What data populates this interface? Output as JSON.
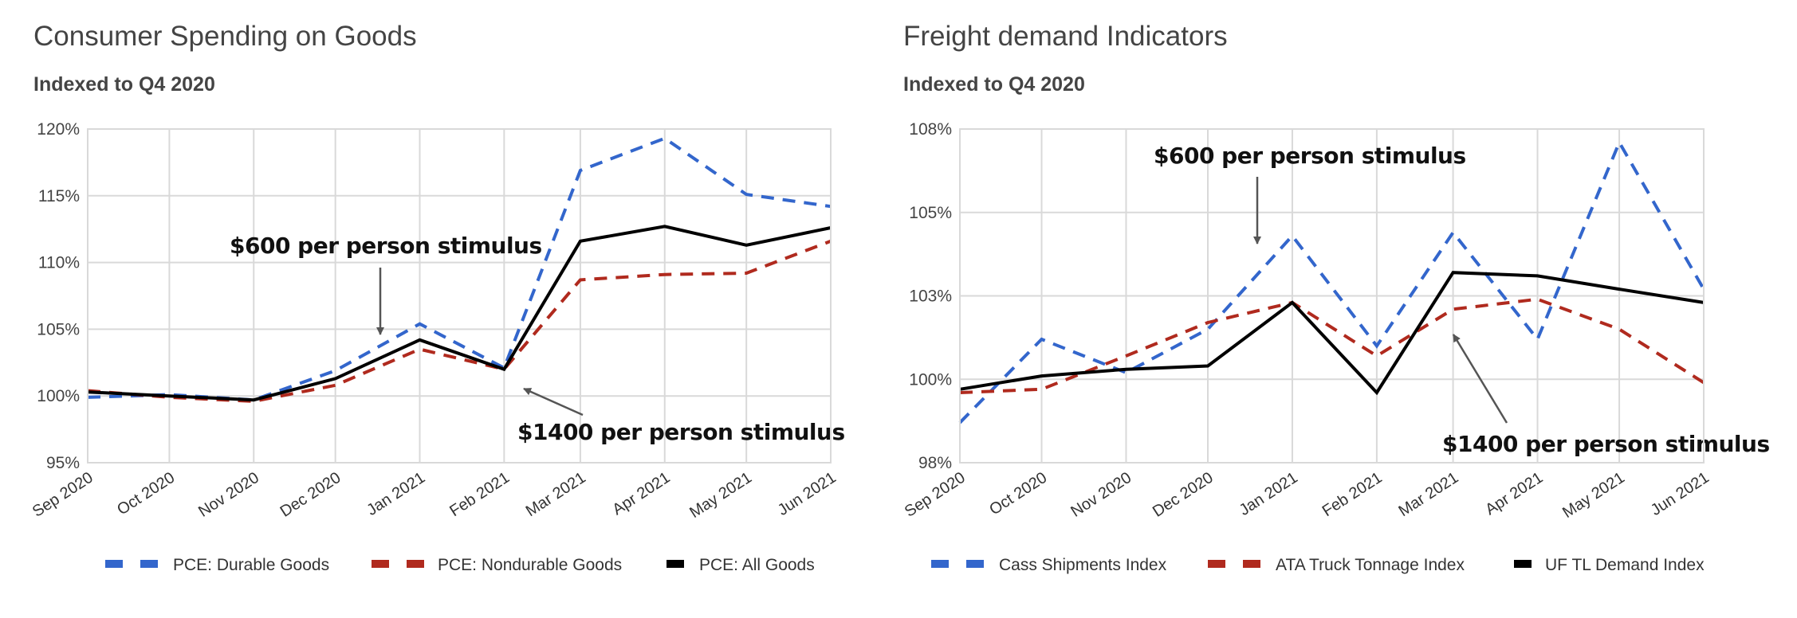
{
  "charts": [
    {
      "title": "Consumer Spending on Goods",
      "subtitle": "Indexed to Q4 2020"
    },
    {
      "title": "Freight demand Indicators",
      "subtitle": "Indexed to Q4 2020"
    }
  ],
  "chart_data": [
    {
      "type": "line",
      "title": "Consumer Spending on Goods",
      "subtitle": "Indexed to Q4 2020",
      "xlabel": "",
      "ylabel": "",
      "x": [
        "Sep 2020",
        "Oct 2020",
        "Nov 2020",
        "Dec 2020",
        "Jan 2021",
        "Feb 2021",
        "Mar 2021",
        "Apr 2021",
        "May 2021",
        "Jun 2021"
      ],
      "x_dates": [
        "2020-09-01",
        "2020-10-01",
        "2020-11-01",
        "2020-12-01",
        "2021-01-01",
        "2021-02-01",
        "2021-03-01",
        "2021-04-01",
        "2021-05-01",
        "2021-06-01"
      ],
      "ylim": [
        95,
        120
      ],
      "yticks": [
        95,
        100,
        105,
        110,
        115,
        120
      ],
      "ytick_labels": [
        "95%",
        "100%",
        "105%",
        "110%",
        "115%",
        "120%"
      ],
      "grid": true,
      "legend_position": "bottom",
      "series": [
        {
          "name": "PCE: Durable Goods",
          "color": "#3366cc",
          "style": "dashed",
          "values": [
            99.9,
            100.1,
            99.7,
            101.9,
            105.4,
            102.1,
            116.9,
            119.3,
            115.1,
            114.2
          ]
        },
        {
          "name": "PCE: Nondurable Goods",
          "color": "#b02a1e",
          "style": "dashed",
          "values": [
            100.4,
            99.9,
            99.6,
            100.8,
            103.5,
            102.0,
            108.7,
            109.1,
            109.2,
            111.6
          ]
        },
        {
          "name": "PCE: All Goods",
          "color": "#000000",
          "style": "solid",
          "values": [
            100.3,
            100.0,
            99.7,
            101.3,
            104.2,
            102.0,
            111.6,
            112.7,
            111.3,
            112.6
          ]
        }
      ],
      "annotations": [
        {
          "text": "$600 per person stimulus",
          "target": "Jan 2021",
          "arrow": "down"
        },
        {
          "text": "$1400 per person stimulus",
          "target": "Feb 2021",
          "arrow": "up-left"
        }
      ]
    },
    {
      "type": "line",
      "title": "Freight demand Indicators",
      "subtitle": "Indexed to Q4 2020",
      "xlabel": "",
      "ylabel": "",
      "x": [
        "Sep 2020",
        "Oct 2020",
        "Nov 2020",
        "Dec 2020",
        "Jan 2021",
        "Feb 2021",
        "Mar 2021",
        "Apr 2021",
        "May 2021",
        "Jun 2021"
      ],
      "x_dates": [
        "2020-09-01",
        "2020-10-01",
        "2020-11-01",
        "2020-12-01",
        "2021-01-01",
        "2021-02-01",
        "2021-03-01",
        "2021-04-01",
        "2021-05-01",
        "2021-06-01"
      ],
      "ylim": [
        97.5,
        107.5
      ],
      "yticks": [
        97.5,
        100,
        102.5,
        105,
        107.5
      ],
      "ytick_labels": [
        "98%",
        "100%",
        "103%",
        "105%",
        "108%"
      ],
      "grid": true,
      "legend_position": "bottom",
      "series": [
        {
          "name": "Cass Shipments Index",
          "color": "#3366cc",
          "style": "dashed",
          "values": [
            98.7,
            101.2,
            100.2,
            101.5,
            104.3,
            101.0,
            104.4,
            101.2,
            107.1,
            102.7
          ]
        },
        {
          "name": "ATA Truck Tonnage Index",
          "color": "#b02a1e",
          "style": "dashed",
          "values": [
            99.6,
            99.7,
            100.7,
            101.7,
            102.3,
            100.7,
            102.1,
            102.4,
            101.5,
            99.9
          ]
        },
        {
          "name": "UF TL Demand Index",
          "color": "#000000",
          "style": "solid",
          "values": [
            99.7,
            100.1,
            100.3,
            100.4,
            102.3,
            99.6,
            103.2,
            103.1,
            102.7,
            102.3
          ]
        }
      ],
      "annotations": [
        {
          "text": "$600 per person stimulus",
          "target": "Dec 2020",
          "arrow": "down"
        },
        {
          "text": "$1400 per person stimulus",
          "target": "Mar 2021",
          "arrow": "up-left"
        }
      ]
    }
  ]
}
